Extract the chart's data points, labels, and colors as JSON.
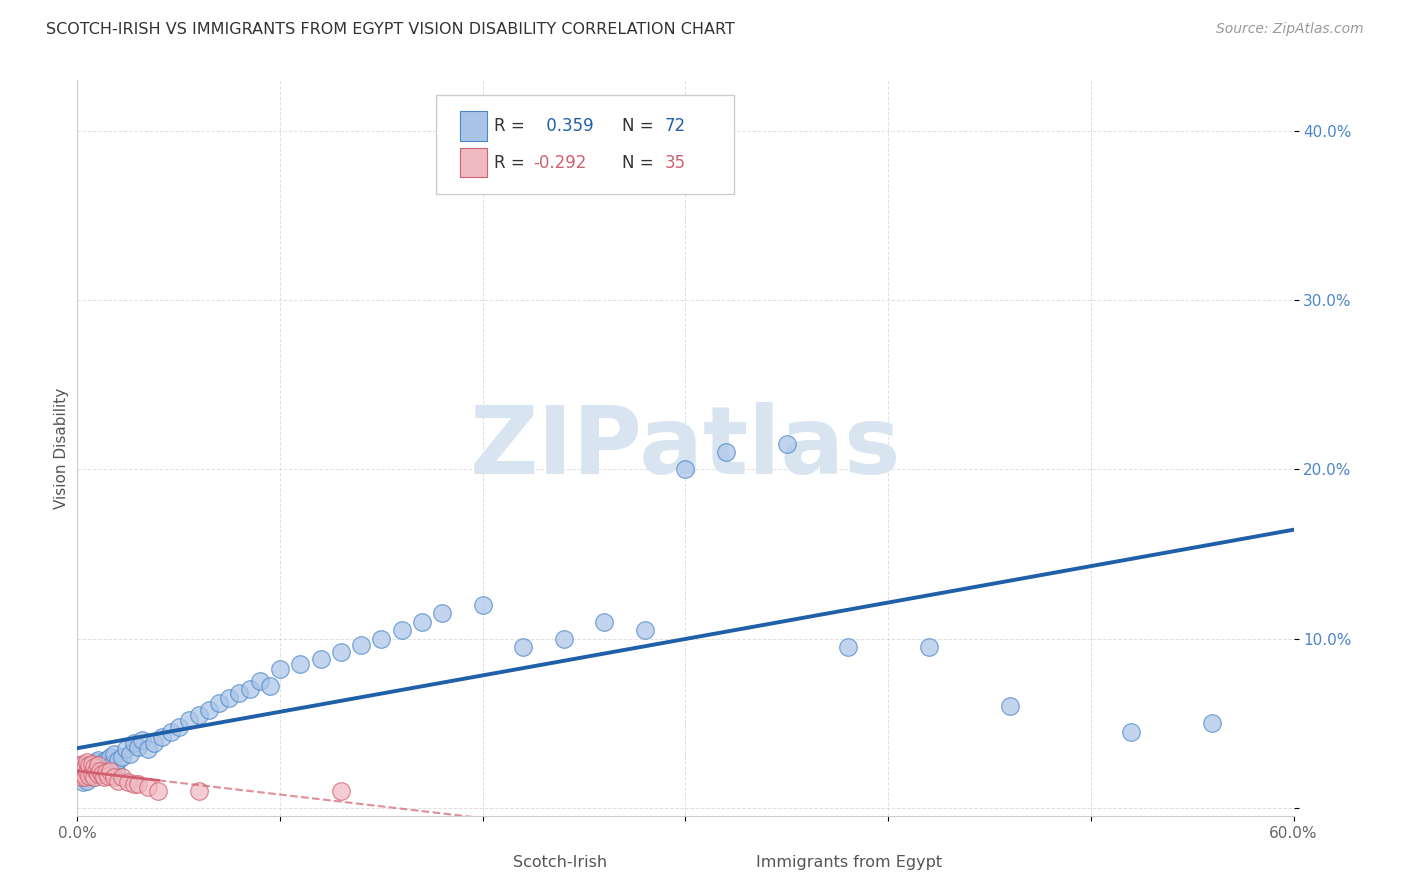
{
  "title": "SCOTCH-IRISH VS IMMIGRANTS FROM EGYPT VISION DISABILITY CORRELATION CHART",
  "source": "Source: ZipAtlas.com",
  "ylabel": "Vision Disability",
  "xlim": [
    0.0,
    0.6
  ],
  "ylim": [
    -0.005,
    0.43
  ],
  "xticks": [
    0.0,
    0.1,
    0.2,
    0.3,
    0.4,
    0.5,
    0.6
  ],
  "xtick_labels": [
    "0.0%",
    "",
    "",
    "",
    "",
    "",
    "60.0%"
  ],
  "yticks": [
    0.0,
    0.1,
    0.2,
    0.3,
    0.4
  ],
  "ytick_labels": [
    "",
    "10.0%",
    "20.0%",
    "30.0%",
    "40.0%"
  ],
  "blue_R": 0.359,
  "blue_N": 72,
  "pink_R": -0.292,
  "pink_N": 35,
  "blue_color": "#aac4e8",
  "pink_color": "#f0b8c0",
  "blue_edge_color": "#4a86c8",
  "pink_edge_color": "#d06070",
  "blue_line_color": "#2060a8",
  "pink_line_color": "#d06070",
  "background_color": "#ffffff",
  "grid_color": "#cccccc",
  "blue_x": [
    0.001,
    0.002,
    0.002,
    0.003,
    0.003,
    0.004,
    0.004,
    0.005,
    0.005,
    0.006,
    0.006,
    0.007,
    0.007,
    0.008,
    0.008,
    0.009,
    0.009,
    0.01,
    0.01,
    0.011,
    0.011,
    0.012,
    0.013,
    0.014,
    0.015,
    0.016,
    0.017,
    0.018,
    0.019,
    0.02,
    0.022,
    0.024,
    0.026,
    0.028,
    0.03,
    0.032,
    0.035,
    0.038,
    0.042,
    0.046,
    0.05,
    0.055,
    0.06,
    0.065,
    0.07,
    0.075,
    0.08,
    0.085,
    0.09,
    0.095,
    0.1,
    0.11,
    0.12,
    0.13,
    0.14,
    0.15,
    0.16,
    0.17,
    0.18,
    0.2,
    0.22,
    0.24,
    0.26,
    0.28,
    0.3,
    0.32,
    0.35,
    0.38,
    0.42,
    0.46,
    0.52,
    0.56
  ],
  "blue_y": [
    0.02,
    0.018,
    0.022,
    0.015,
    0.025,
    0.018,
    0.022,
    0.016,
    0.024,
    0.019,
    0.023,
    0.02,
    0.026,
    0.018,
    0.024,
    0.021,
    0.027,
    0.022,
    0.028,
    0.02,
    0.026,
    0.022,
    0.025,
    0.028,
    0.024,
    0.03,
    0.026,
    0.032,
    0.022,
    0.028,
    0.03,
    0.035,
    0.032,
    0.038,
    0.036,
    0.04,
    0.035,
    0.038,
    0.042,
    0.045,
    0.048,
    0.052,
    0.055,
    0.058,
    0.062,
    0.065,
    0.068,
    0.07,
    0.075,
    0.072,
    0.082,
    0.085,
    0.088,
    0.092,
    0.096,
    0.1,
    0.105,
    0.11,
    0.115,
    0.12,
    0.095,
    0.1,
    0.11,
    0.105,
    0.2,
    0.21,
    0.215,
    0.095,
    0.095,
    0.06,
    0.045,
    0.05
  ],
  "pink_x": [
    0.001,
    0.001,
    0.002,
    0.002,
    0.003,
    0.003,
    0.004,
    0.004,
    0.005,
    0.005,
    0.006,
    0.006,
    0.007,
    0.007,
    0.008,
    0.008,
    0.009,
    0.01,
    0.01,
    0.011,
    0.012,
    0.013,
    0.014,
    0.015,
    0.016,
    0.018,
    0.02,
    0.022,
    0.025,
    0.028,
    0.03,
    0.035,
    0.04,
    0.06,
    0.13
  ],
  "pink_y": [
    0.02,
    0.025,
    0.018,
    0.022,
    0.02,
    0.026,
    0.018,
    0.024,
    0.021,
    0.027,
    0.019,
    0.025,
    0.02,
    0.026,
    0.018,
    0.024,
    0.022,
    0.02,
    0.025,
    0.022,
    0.02,
    0.018,
    0.021,
    0.019,
    0.022,
    0.018,
    0.016,
    0.018,
    0.015,
    0.014,
    0.014,
    0.012,
    0.01,
    0.01,
    0.01
  ],
  "watermark_text": "ZIPatlas",
  "watermark_color": "#d8e4f0",
  "legend_label_blue": "Scotch-Irish",
  "legend_label_pink": "Immigrants from Egypt"
}
